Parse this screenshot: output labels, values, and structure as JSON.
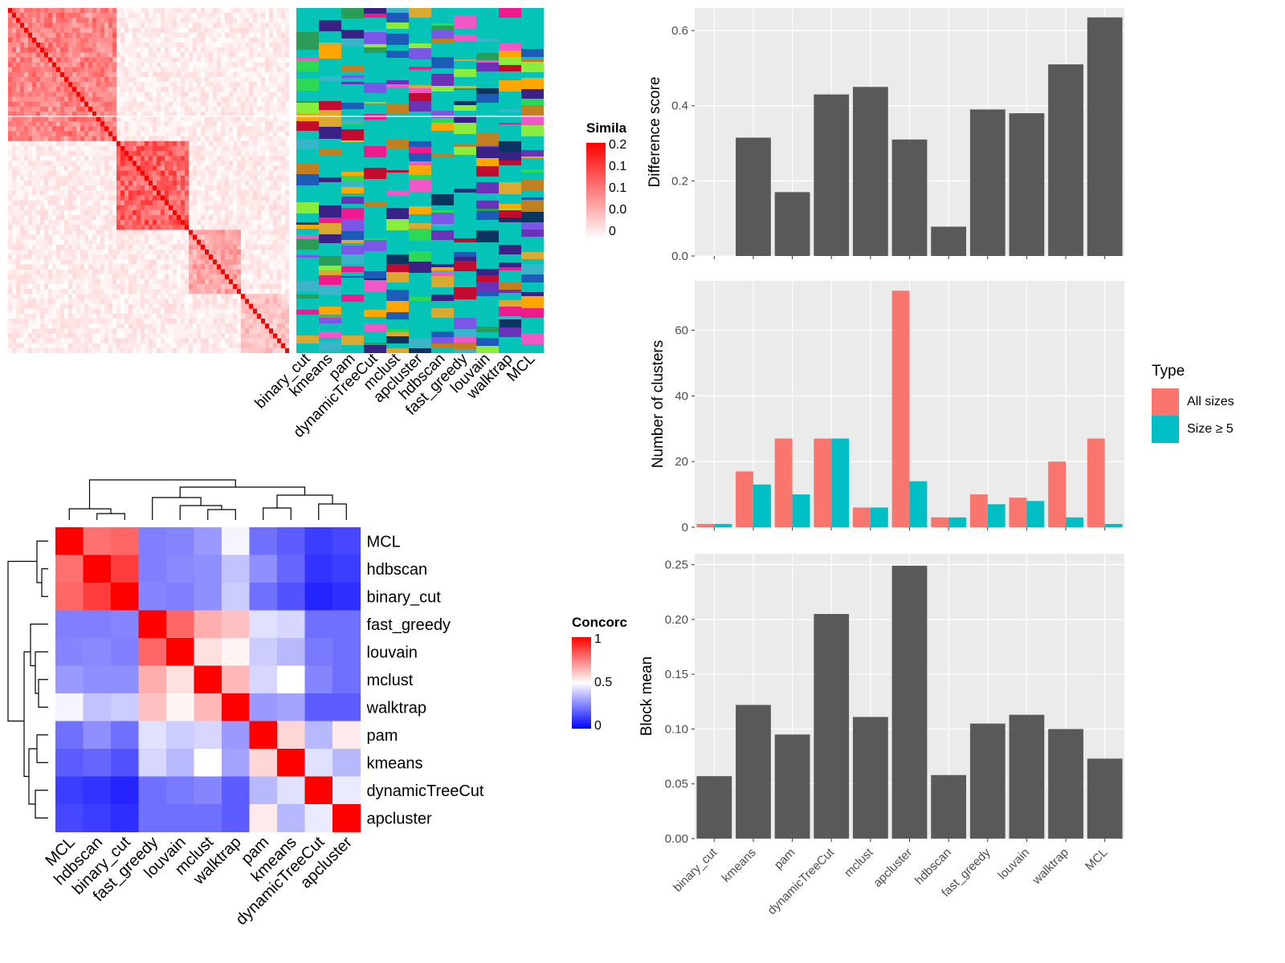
{
  "colors": {
    "panel_bg": "#EBEBEB",
    "grid": "#FFFFFF",
    "bar_dark": "#595959",
    "all_sizes": "#F8766D",
    "size_ge5": "#00BFC4",
    "heat_red": "#FF0000",
    "heat_white": "#FFFFFF",
    "heat_blue": "#0000FF"
  },
  "similarity_legend": {
    "title": "Simila",
    "ticks": [
      "0.2",
      "0.1",
      "0.1",
      "0.0",
      "0"
    ]
  },
  "concordance_legend": {
    "title": "Concorc",
    "ticks": [
      "1",
      "0.5",
      "0"
    ]
  },
  "chart_data": [
    {
      "type": "bar",
      "categories": [
        "binary_cut",
        "kmeans",
        "pam",
        "dynamicTreeCut",
        "mclust",
        "apcluster",
        "hdbscan",
        "fast_greedy",
        "louvain",
        "walktrap",
        "MCL"
      ],
      "values": [
        0,
        0.315,
        0.17,
        0.43,
        0.45,
        0.31,
        0.078,
        0.39,
        0.38,
        0.51,
        0.635
      ],
      "ylabel": "Difference score",
      "ylim": [
        0,
        0.66
      ],
      "yticks": [
        "0.0",
        "0.2",
        "0.4",
        "0.6"
      ],
      "grid": true
    },
    {
      "type": "bar",
      "categories": [
        "binary_cut",
        "kmeans",
        "pam",
        "dynamicTreeCut",
        "mclust",
        "apcluster",
        "hdbscan",
        "fast_greedy",
        "louvain",
        "walktrap",
        "MCL"
      ],
      "series": [
        {
          "name": "All sizes",
          "values": [
            1,
            17,
            27,
            27,
            6,
            72,
            3,
            10,
            9,
            20,
            27
          ]
        },
        {
          "name": "Size ≥ 5",
          "values": [
            1,
            13,
            10,
            27,
            6,
            14,
            3,
            7,
            8,
            3,
            1
          ]
        }
      ],
      "ylabel": "Number of clusters",
      "ylim": [
        0,
        75
      ],
      "yticks": [
        "0",
        "20",
        "40",
        "60"
      ],
      "legend": {
        "title": "Type",
        "placement": "right"
      },
      "grid": true
    },
    {
      "type": "bar",
      "categories": [
        "binary_cut",
        "kmeans",
        "pam",
        "dynamicTreeCut",
        "mclust",
        "apcluster",
        "hdbscan",
        "fast_greedy",
        "louvain",
        "walktrap",
        "MCL"
      ],
      "values": [
        0.057,
        0.122,
        0.095,
        0.205,
        0.111,
        0.249,
        0.058,
        0.105,
        0.113,
        0.1,
        0.073
      ],
      "ylabel": "Block mean",
      "ylim": [
        0,
        0.26
      ],
      "yticks": [
        "0.00",
        "0.05",
        "0.10",
        "0.15",
        "0.20",
        "0.25"
      ],
      "grid": true
    },
    {
      "type": "heatmap",
      "rows": [
        "MCL",
        "hdbscan",
        "binary_cut",
        "fast_greedy",
        "louvain",
        "mclust",
        "walktrap",
        "pam",
        "kmeans",
        "dynamicTreeCut",
        "apcluster"
      ],
      "columns": [
        "MCL",
        "hdbscan",
        "binary_cut",
        "fast_greedy",
        "louvain",
        "mclust",
        "walktrap",
        "pam",
        "kmeans",
        "dynamicTreeCut",
        "apcluster"
      ],
      "values": [
        [
          1.0,
          0.78,
          0.8,
          0.25,
          0.26,
          0.3,
          0.48,
          0.22,
          0.18,
          0.12,
          0.14
        ],
        [
          0.78,
          1.0,
          0.88,
          0.25,
          0.27,
          0.28,
          0.38,
          0.28,
          0.2,
          0.1,
          0.12
        ],
        [
          0.8,
          0.88,
          1.0,
          0.26,
          0.25,
          0.28,
          0.4,
          0.22,
          0.16,
          0.07,
          0.09
        ],
        [
          0.25,
          0.25,
          0.26,
          1.0,
          0.8,
          0.66,
          0.62,
          0.44,
          0.42,
          0.22,
          0.22
        ],
        [
          0.26,
          0.27,
          0.25,
          0.8,
          1.0,
          0.56,
          0.52,
          0.4,
          0.36,
          0.24,
          0.22
        ],
        [
          0.3,
          0.28,
          0.28,
          0.66,
          0.56,
          1.0,
          0.64,
          0.42,
          0.5,
          0.26,
          0.22
        ],
        [
          0.48,
          0.38,
          0.4,
          0.62,
          0.52,
          0.64,
          1.0,
          0.3,
          0.32,
          0.18,
          0.18
        ],
        [
          0.22,
          0.28,
          0.22,
          0.44,
          0.4,
          0.42,
          0.3,
          1.0,
          0.58,
          0.36,
          0.54
        ],
        [
          0.18,
          0.2,
          0.16,
          0.42,
          0.36,
          0.5,
          0.32,
          0.58,
          1.0,
          0.44,
          0.36
        ],
        [
          0.12,
          0.1,
          0.07,
          0.22,
          0.24,
          0.26,
          0.18,
          0.36,
          0.44,
          1.0,
          0.46
        ],
        [
          0.14,
          0.12,
          0.09,
          0.22,
          0.22,
          0.22,
          0.18,
          0.54,
          0.36,
          0.46,
          1.0
        ]
      ],
      "colorbar": [
        0,
        1
      ]
    }
  ],
  "annotation_columns": [
    "binary_cut",
    "kmeans",
    "pam",
    "dynamicTreeCut",
    "mclust",
    "apcluster",
    "hdbscan",
    "fast_greedy",
    "louvain",
    "walktrap",
    "MCL"
  ]
}
